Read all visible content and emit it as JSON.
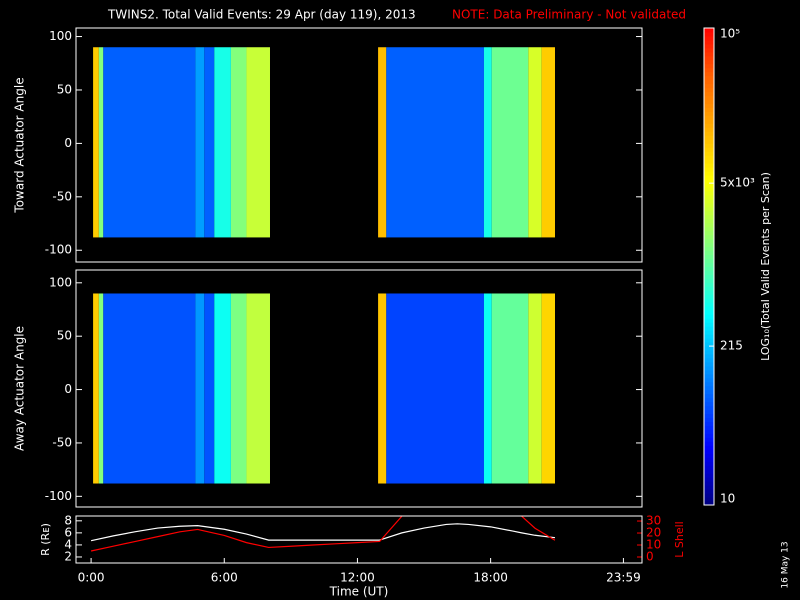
{
  "title": "TWINS2. Total Valid Events: 29 Apr (day 119), 2013",
  "note": "NOTE: Data Preliminary - Not validated",
  "stamp": "16 May 13",
  "colorbar": {
    "label": "LOG₁₀(Total Valid Events per Scan)",
    "log": true,
    "lim": [
      10,
      100000
    ],
    "ticks": [
      10,
      215,
      {
        "value": 5000,
        "label": "5x10³"
      },
      {
        "value": 100000,
        "label": "10⁵"
      }
    ]
  },
  "chart_data": [
    {
      "type": "heatmap",
      "ylabel": "Toward Actuator Angle",
      "xlim": [
        -0.68,
        24.82
      ],
      "ylim": [
        -111,
        108
      ],
      "yticks": [
        -100,
        -50,
        0,
        50,
        100
      ],
      "y_edges": [
        -88,
        90
      ],
      "x_edges": [
        0.09,
        0.35,
        0.55,
        4.7,
        5.1,
        5.55,
        6.3,
        7.0,
        8.06,
        12.93,
        13.3,
        17.7,
        18.05,
        19.7,
        20.3,
        20.9
      ],
      "values": [
        10000,
        1500,
        80,
        150,
        80,
        500,
        1500,
        3000,
        null,
        12000,
        80,
        500,
        1200,
        3500,
        10000
      ]
    },
    {
      "type": "heatmap",
      "ylabel": "Away Actuator Angle",
      "xlim": [
        -0.68,
        24.82
      ],
      "ylim": [
        -110,
        112
      ],
      "yticks": [
        -100,
        -50,
        0,
        50,
        100
      ],
      "y_edges": [
        -88,
        90
      ],
      "x_edges": [
        0.09,
        0.35,
        0.55,
        4.7,
        5.1,
        5.55,
        6.3,
        7.0,
        8.06,
        12.93,
        13.3,
        17.7,
        18.05,
        19.7,
        20.3,
        20.9
      ],
      "values": [
        10000,
        1500,
        70,
        140,
        70,
        450,
        1400,
        2800,
        null,
        11000,
        60,
        450,
        1100,
        3200,
        9000
      ]
    },
    {
      "type": "line",
      "xlabel": "Time (UT)",
      "ylabel": "R (Rᴇ)",
      "y2label": "L Shell",
      "xlim": [
        -0.68,
        24.82
      ],
      "ylim": [
        1,
        8.8
      ],
      "y2lim": [
        -5,
        34.2
      ],
      "xticks": [
        {
          "value": 0,
          "label": "0:00"
        },
        {
          "value": 6,
          "label": "6:00"
        },
        {
          "value": 12,
          "label": "12:00"
        },
        {
          "value": 18,
          "label": "18:00"
        },
        {
          "value": 23.983,
          "label": "23:59"
        }
      ],
      "yticks": [
        2,
        4,
        6,
        8
      ],
      "y2ticks": [
        0,
        10,
        20,
        30
      ],
      "x": [
        0,
        1,
        2,
        3,
        4,
        4.8,
        6,
        7,
        8,
        9,
        10,
        11,
        12,
        13,
        14,
        15,
        16,
        16.5,
        17,
        18,
        19,
        19.4,
        20,
        20.9
      ],
      "series": [
        {
          "name": "R",
          "color": "#ffffff",
          "values": [
            4.7,
            5.5,
            6.2,
            6.8,
            7.1,
            7.2,
            6.6,
            5.8,
            4.8,
            4.8,
            4.8,
            4.8,
            4.8,
            4.8,
            6.0,
            6.8,
            7.4,
            7.5,
            7.4,
            7.0,
            6.3,
            6.0,
            5.6,
            5.2
          ]
        },
        {
          "name": "L Shell",
          "color": "#ff0000",
          "axis": "y2",
          "values": [
            5,
            9,
            13,
            17,
            21,
            23,
            18,
            12,
            8,
            9,
            10,
            11,
            12,
            13,
            34,
            null,
            null,
            null,
            null,
            null,
            null,
            34,
            24,
            14
          ]
        }
      ]
    }
  ]
}
